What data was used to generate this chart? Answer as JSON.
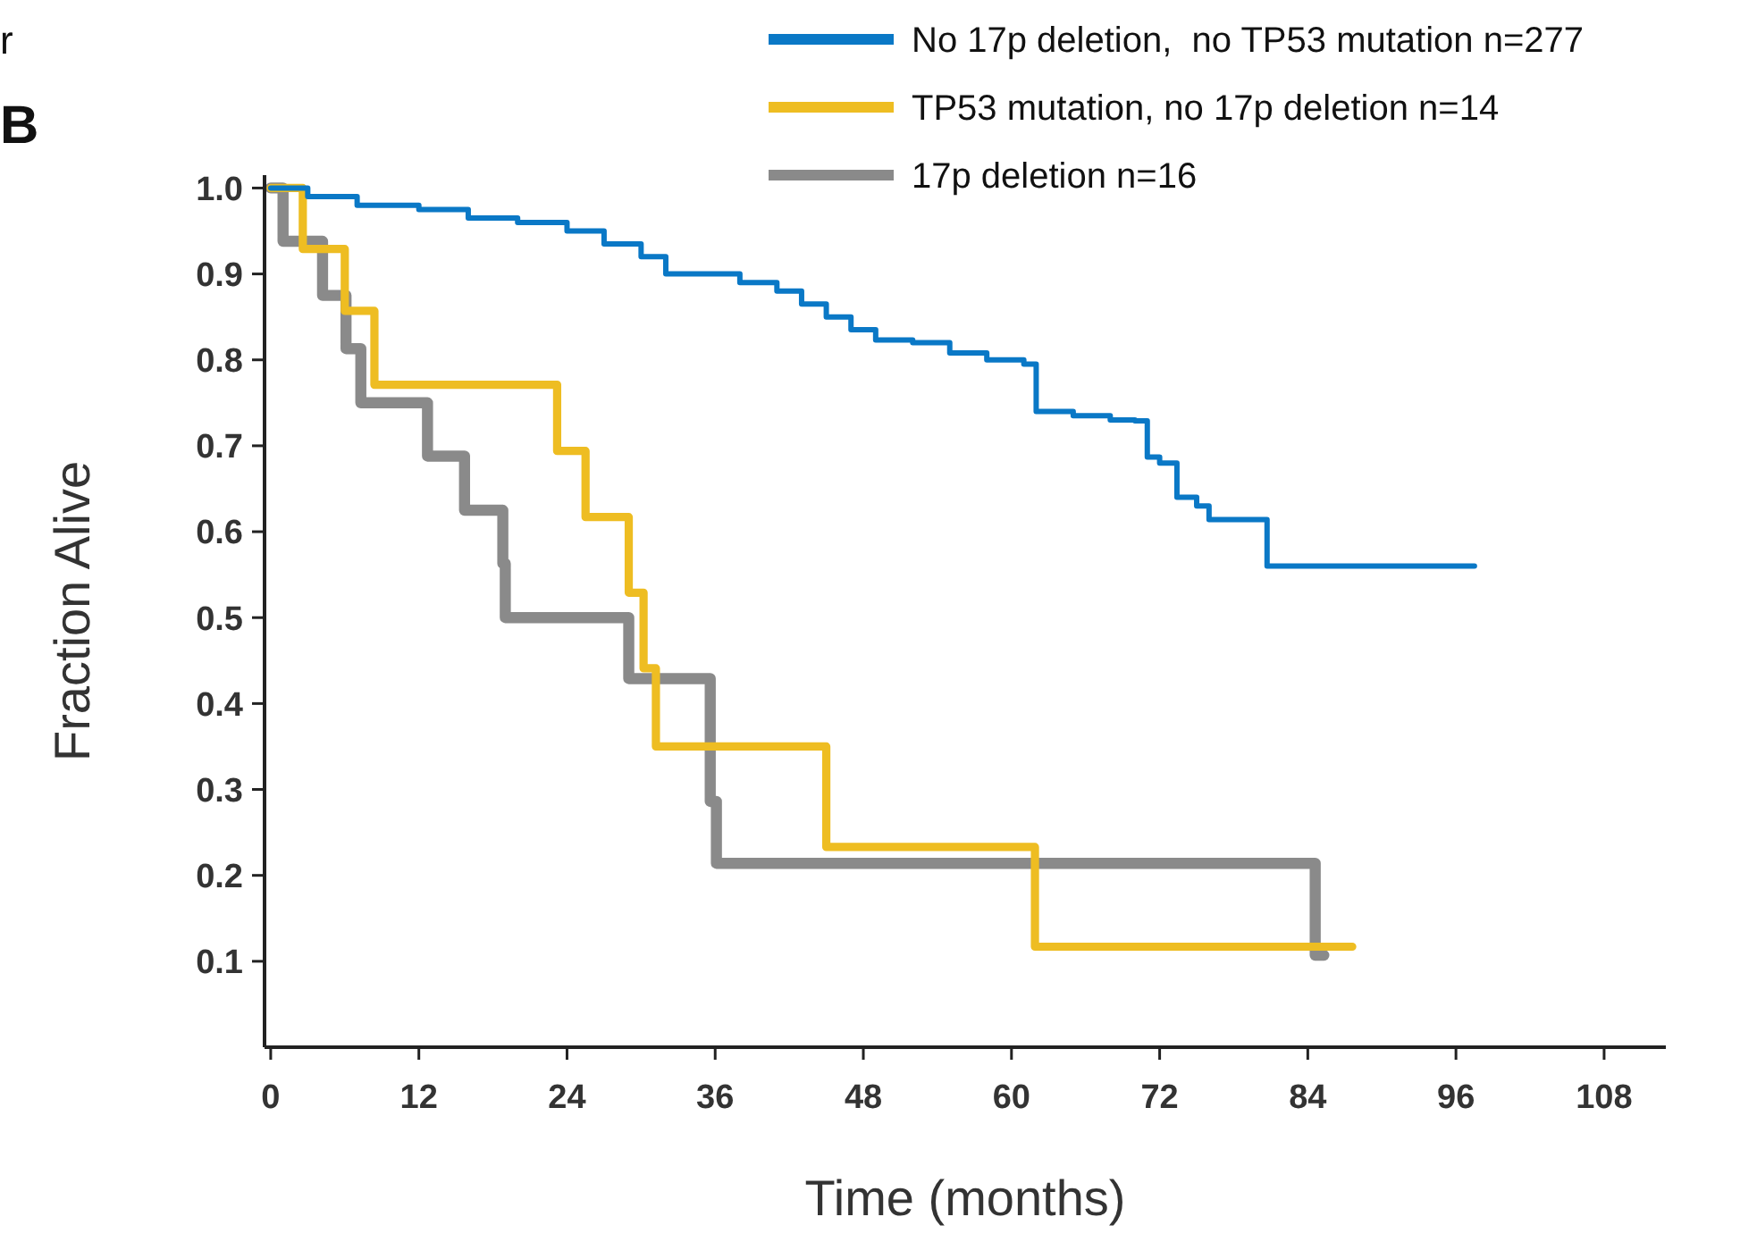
{
  "chart_data": {
    "type": "step",
    "xlabel": "Time (months)",
    "ylabel": "Fraction Alive",
    "annotations": [
      "B",
      "r"
    ],
    "xlim": [
      -0.5,
      113
    ],
    "xticks": [
      0,
      12,
      24,
      36,
      48,
      60,
      72,
      84,
      96,
      108
    ],
    "ylim": [
      0,
      1.015
    ],
    "yticks": [
      0.1,
      0.2,
      0.3,
      0.4,
      0.5,
      0.6,
      0.7,
      0.8,
      0.9,
      {
        "value": 1,
        "label": "1.0"
      }
    ],
    "legend": "top right",
    "grid": false,
    "line_style": "solid",
    "series": [
      {
        "name": "No 17p deletion,  no TP53 mutation n=277",
        "color": "#0a78c6",
        "x": [
          0,
          3,
          7,
          12,
          16,
          20,
          24,
          27,
          30,
          32,
          35,
          38,
          41,
          43,
          45,
          47,
          49,
          52,
          55,
          58,
          61,
          62,
          65,
          68,
          70,
          71,
          72,
          73.4,
          75,
          76,
          78,
          80.7,
          85,
          90,
          97.5
        ],
        "values": [
          1.0,
          0.99,
          0.98,
          0.975,
          0.965,
          0.96,
          0.95,
          0.935,
          0.92,
          0.9,
          0.9,
          0.89,
          0.88,
          0.865,
          0.85,
          0.835,
          0.823,
          0.82,
          0.808,
          0.8,
          0.795,
          0.74,
          0.735,
          0.73,
          0.729,
          0.687,
          0.68,
          0.64,
          0.63,
          0.614,
          0.614,
          0.56,
          0.56,
          0.56,
          0.56
        ]
      },
      {
        "name": "TP53 mutation, no 17p deletion n=14",
        "color": "#eebd22",
        "x": [
          0,
          2.6,
          6.0,
          8.4,
          23.2,
          25.5,
          29,
          30.2,
          31.2,
          45,
          61.9,
          87.6
        ],
        "values": [
          1.0,
          0.929,
          0.857,
          0.771,
          0.694,
          0.617,
          0.529,
          0.441,
          0.35,
          0.233,
          0.117,
          0.117
        ]
      },
      {
        "name": "17p deletion n=16",
        "color": "#8a8a8a",
        "x": [
          0,
          1.0,
          4.2,
          6.1,
          7.3,
          12.7,
          15.7,
          18.8,
          19.0,
          29,
          35.6,
          36.1,
          84.6,
          85.3
        ],
        "values": [
          1.0,
          0.938,
          0.875,
          0.813,
          0.75,
          0.688,
          0.625,
          0.563,
          0.5,
          0.429,
          0.286,
          0.214,
          0.107,
          0.107
        ]
      }
    ]
  }
}
